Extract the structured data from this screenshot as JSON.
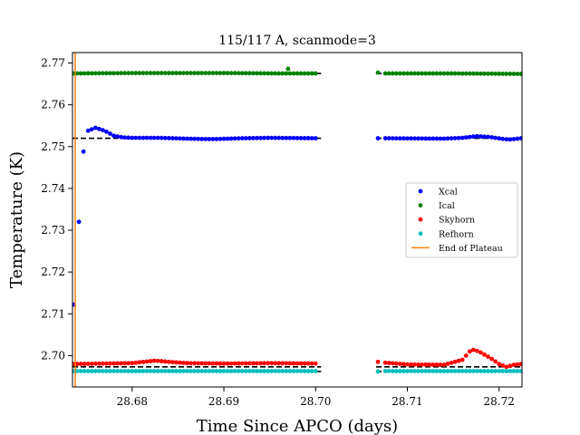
{
  "chart_data": {
    "type": "scatter",
    "title": "115/117 A, scanmode=3",
    "xlabel": "Time Since APCO (days)",
    "ylabel": "Temperature (K)",
    "xlim": [
      28.6735,
      28.7225
    ],
    "ylim": [
      2.6925,
      2.7725
    ],
    "xticks": [
      28.68,
      28.69,
      28.7,
      28.71,
      28.72
    ],
    "xtick_labels": [
      "28.68",
      "28.69",
      "28.70",
      "28.71",
      "28.72"
    ],
    "yticks": [
      2.7,
      2.71,
      2.72,
      2.73,
      2.74,
      2.75,
      2.76,
      2.77
    ],
    "ytick_labels": [
      "2.70",
      "2.71",
      "2.72",
      "2.73",
      "2.74",
      "2.75",
      "2.76",
      "2.77"
    ],
    "legend_position": "center-right",
    "end_of_plateau_x": 28.6738,
    "reference_lines": [
      {
        "y": 2.7675,
        "segments": [
          [
            28.6735,
            28.7006
          ],
          [
            28.7066,
            28.7225
          ]
        ]
      },
      {
        "y": 2.752,
        "segments": [
          [
            28.6735,
            28.7006
          ],
          [
            28.7066,
            28.7225
          ]
        ]
      },
      {
        "y": 2.6973,
        "segments": [
          [
            28.6735,
            28.7006
          ],
          [
            28.7066,
            28.7225
          ]
        ]
      },
      {
        "y": 2.6962,
        "segments": [
          [
            28.6735,
            28.7006
          ],
          [
            28.7066,
            28.7225
          ]
        ]
      }
    ],
    "series": [
      {
        "name": "Xcal",
        "color": "#0000ff",
        "points": [
          [
            28.6736,
            2.7122
          ],
          [
            28.6742,
            2.732
          ],
          [
            28.6747,
            2.7488
          ],
          {
            "from": 28.6752,
            "to": 28.7003,
            "step": 0.0004,
            "y": [
              [
                28.6752,
                2.7538
              ],
              [
                28.676,
                2.7545
              ],
              [
                28.677,
                2.7538
              ],
              [
                28.678,
                2.7526
              ],
              [
                28.679,
                2.7522
              ],
              [
                28.68,
                2.7521
              ],
              [
                28.683,
                2.7521
              ],
              [
                28.686,
                2.7519
              ],
              [
                28.688,
                2.7518
              ],
              [
                28.689,
                2.7518
              ],
              [
                28.692,
                2.752
              ],
              [
                28.695,
                2.7521
              ],
              [
                28.7003,
                2.752
              ]
            ]
          },
          [
            28.7068,
            2.752
          ],
          {
            "from": 28.7076,
            "to": 28.7224,
            "step": 0.0004,
            "y": [
              [
                28.7076,
                2.752
              ],
              [
                28.714,
                2.7519
              ],
              [
                28.716,
                2.7521
              ],
              [
                28.7175,
                2.7525
              ],
              [
                28.719,
                2.7523
              ],
              [
                28.7205,
                2.7518
              ],
              [
                28.7212,
                2.7517
              ],
              [
                28.7224,
                2.752
              ]
            ]
          }
        ]
      },
      {
        "name": "Ical",
        "color": "#008000",
        "points": [
          {
            "from": 28.6736,
            "to": 28.7003,
            "step": 0.0004,
            "y": [
              [
                28.6736,
                2.7675
              ],
              [
                28.68,
                2.7676
              ],
              [
                28.69,
                2.7676
              ],
              [
                28.696,
                2.7675
              ],
              [
                28.7003,
                2.7675
              ]
            ]
          },
          [
            28.697,
            2.7686
          ],
          [
            28.7068,
            2.7677
          ],
          {
            "from": 28.7076,
            "to": 28.7224,
            "step": 0.0004,
            "y": [
              [
                28.7076,
                2.7675
              ],
              [
                28.715,
                2.7675
              ],
              [
                28.7224,
                2.7674
              ]
            ]
          }
        ]
      },
      {
        "name": "Skyhorn",
        "color": "#ff0000",
        "points": [
          {
            "from": 28.6736,
            "to": 28.7003,
            "step": 0.0004,
            "y": [
              [
                28.6736,
                2.698
              ],
              [
                28.68,
                2.6982
              ],
              [
                28.6825,
                2.6988
              ],
              [
                28.684,
                2.6985
              ],
              [
                28.686,
                2.6982
              ],
              [
                28.69,
                2.6981
              ],
              [
                28.695,
                2.6982
              ],
              [
                28.7003,
                2.6981
              ]
            ]
          },
          [
            28.7068,
            2.6985
          ],
          {
            "from": 28.7076,
            "to": 28.7224,
            "step": 0.0004,
            "y": [
              [
                28.7076,
                2.6983
              ],
              [
                28.71,
                2.6979
              ],
              [
                28.714,
                2.6978
              ],
              [
                28.716,
                2.699
              ],
              [
                28.717,
                2.7015
              ],
              [
                28.7178,
                2.701
              ],
              [
                28.719,
                2.6995
              ],
              [
                28.72,
                2.698
              ],
              [
                28.7208,
                2.6973
              ],
              [
                28.7216,
                2.6978
              ],
              [
                28.7224,
                2.698
              ]
            ]
          }
        ]
      },
      {
        "name": "Refhorn",
        "color": "#00bfbf",
        "points": [
          {
            "from": 28.6736,
            "to": 28.7003,
            "step": 0.0004,
            "y": [
              [
                28.6736,
                2.6963
              ],
              [
                28.7003,
                2.6963
              ]
            ]
          },
          [
            28.7068,
            2.6962
          ],
          {
            "from": 28.7076,
            "to": 28.7224,
            "step": 0.0004,
            "y": [
              [
                28.7076,
                2.6963
              ],
              [
                28.7224,
                2.6963
              ]
            ]
          }
        ]
      }
    ],
    "legend": [
      {
        "label": "Xcal",
        "color": "#0000ff",
        "marker": "dot"
      },
      {
        "label": "Ical",
        "color": "#008000",
        "marker": "dot"
      },
      {
        "label": "Skyhorn",
        "color": "#ff0000",
        "marker": "dot"
      },
      {
        "label": "Refhorn",
        "color": "#00bfbf",
        "marker": "dot"
      },
      {
        "label": "End of Plateau",
        "color": "#ff7f0e",
        "marker": "line"
      }
    ]
  }
}
